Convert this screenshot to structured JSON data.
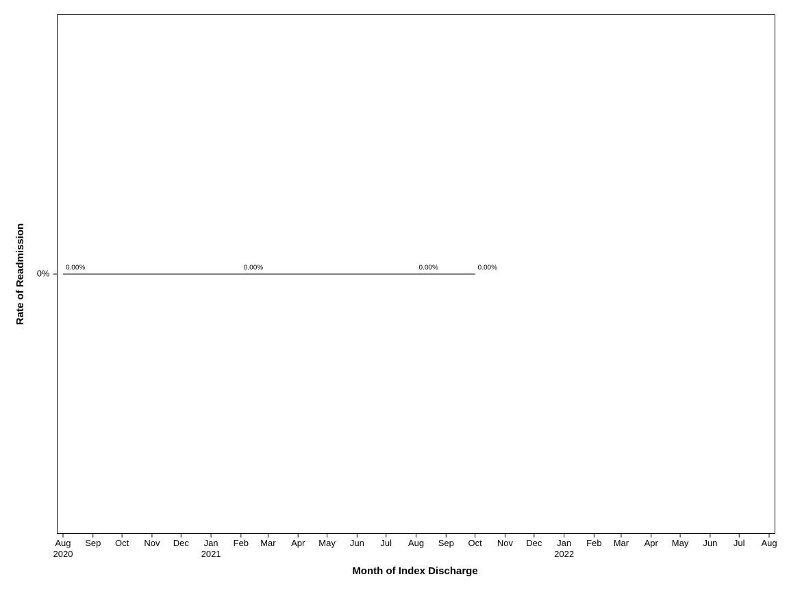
{
  "chart_data": {
    "type": "line",
    "x_label": "Month of Index Discharge",
    "y_label": "Rate of Readmission",
    "x": [
      "2020-08",
      "2021-02",
      "2021-08",
      "2021-10"
    ],
    "values": [
      0,
      0,
      0,
      0
    ],
    "value_labels": [
      "0.00%",
      "0.00%",
      "0.00%",
      "0.00%"
    ],
    "color": "#000000",
    "xlim": [
      "2020-07-26",
      "2022-08-07"
    ],
    "xticks": [
      {
        "value": "2020-08",
        "label": "Aug"
      },
      {
        "value": "2020-09",
        "label": "Sep"
      },
      {
        "value": "2020-10",
        "label": "Oct"
      },
      {
        "value": "2020-11",
        "label": "Nov"
      },
      {
        "value": "2020-12",
        "label": "Dec"
      },
      {
        "value": "2021-01",
        "label": "Jan"
      },
      {
        "value": "2021-02",
        "label": "Feb"
      },
      {
        "value": "2021-03",
        "label": "Mar"
      },
      {
        "value": "2021-04",
        "label": "Apr"
      },
      {
        "value": "2021-05",
        "label": "May"
      },
      {
        "value": "2021-06",
        "label": "Jun"
      },
      {
        "value": "2021-07",
        "label": "Jul"
      },
      {
        "value": "2021-08",
        "label": "Aug"
      },
      {
        "value": "2021-09",
        "label": "Sep"
      },
      {
        "value": "2021-10",
        "label": "Oct"
      },
      {
        "value": "2021-11",
        "label": "Nov"
      },
      {
        "value": "2021-12",
        "label": "Dec"
      },
      {
        "value": "2022-01",
        "label": "Jan"
      },
      {
        "value": "2022-02",
        "label": "Feb"
      },
      {
        "value": "2022-03",
        "label": "Mar"
      },
      {
        "value": "2022-04",
        "label": "Apr"
      },
      {
        "value": "2022-05",
        "label": "May"
      },
      {
        "value": "2022-06",
        "label": "Jun"
      },
      {
        "value": "2022-07",
        "label": "Jul"
      },
      {
        "value": "2022-08",
        "label": "Aug"
      }
    ],
    "xtick_years": [
      {
        "value": "2020-08",
        "label": "2020"
      },
      {
        "value": "2021-01",
        "label": "2021"
      },
      {
        "value": "2022-01",
        "label": "2022"
      }
    ],
    "ylim": [
      -1,
      1
    ],
    "yticks": [
      {
        "value": 0,
        "label": "0%"
      }
    ]
  }
}
